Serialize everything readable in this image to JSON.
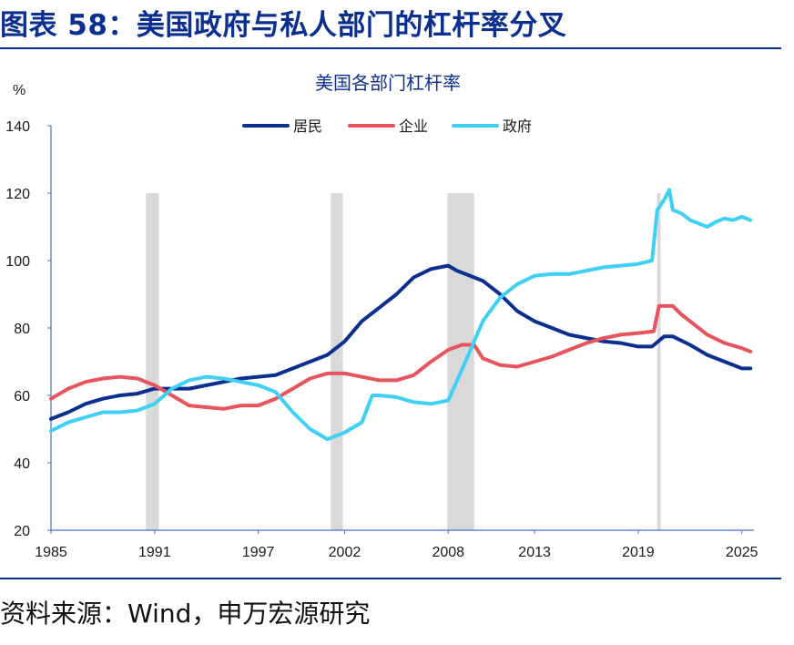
{
  "figure_title": "图表 58：美国政府与私人部门的杠杆率分叉",
  "source_note": "资料来源：Wind，申万宏源研究",
  "colors": {
    "title": "#0b2f8f",
    "recession": "#d9d9d9",
    "axis": "#4472c4"
  },
  "chart_data": {
    "type": "line",
    "title": "美国各部门杠杆率",
    "ylabel": "%",
    "xlabel": "",
    "xlim": [
      1985,
      2025.7
    ],
    "ylim": [
      20,
      140
    ],
    "x_ticks": [
      1985,
      1991,
      1997,
      2002,
      2008,
      2013,
      2019,
      2025
    ],
    "y_ticks": [
      20,
      40,
      60,
      80,
      100,
      120,
      140
    ],
    "grid": false,
    "legend_position": "top-center",
    "recessions": [
      [
        1990.5,
        1991.25
      ],
      [
        2001.2,
        2001.9
      ],
      [
        2007.95,
        2009.5
      ],
      [
        2020.1,
        2020.3
      ]
    ],
    "series": [
      {
        "name": "居民",
        "color": "#0b2f8f",
        "points": [
          [
            1985,
            53
          ],
          [
            1986,
            55
          ],
          [
            1987,
            57.5
          ],
          [
            1988,
            59
          ],
          [
            1989,
            60
          ],
          [
            1990,
            60.5
          ],
          [
            1991,
            62
          ],
          [
            1992,
            62
          ],
          [
            1993,
            62
          ],
          [
            1994,
            63
          ],
          [
            1995,
            64
          ],
          [
            1996,
            65
          ],
          [
            1997,
            65.5
          ],
          [
            1998,
            66
          ],
          [
            1999,
            68
          ],
          [
            2000,
            70
          ],
          [
            2001,
            72
          ],
          [
            2002,
            76
          ],
          [
            2003,
            82
          ],
          [
            2004,
            86
          ],
          [
            2005,
            90
          ],
          [
            2006,
            95
          ],
          [
            2007,
            97.5
          ],
          [
            2008,
            98.5
          ],
          [
            2008.5,
            97
          ],
          [
            2009,
            96
          ],
          [
            2010,
            94
          ],
          [
            2011,
            90
          ],
          [
            2012,
            85
          ],
          [
            2013,
            82
          ],
          [
            2014,
            80
          ],
          [
            2015,
            78
          ],
          [
            2016,
            77
          ],
          [
            2017,
            76
          ],
          [
            2018,
            75.5
          ],
          [
            2019,
            74.5
          ],
          [
            2019.8,
            74.5
          ],
          [
            2020.5,
            77.5
          ],
          [
            2021,
            77.5
          ],
          [
            2022,
            75
          ],
          [
            2023,
            72
          ],
          [
            2024,
            70
          ],
          [
            2025,
            68
          ],
          [
            2025.5,
            68
          ]
        ]
      },
      {
        "name": "企业",
        "color": "#e8545c",
        "points": [
          [
            1985,
            59
          ],
          [
            1986,
            62
          ],
          [
            1987,
            64
          ],
          [
            1988,
            65
          ],
          [
            1989,
            65.5
          ],
          [
            1990,
            65
          ],
          [
            1991,
            63
          ],
          [
            1992,
            60
          ],
          [
            1993,
            57
          ],
          [
            1994,
            56.5
          ],
          [
            1995,
            56
          ],
          [
            1996,
            57
          ],
          [
            1997,
            57
          ],
          [
            1998,
            59
          ],
          [
            1999,
            62
          ],
          [
            2000,
            65
          ],
          [
            2001,
            66.5
          ],
          [
            2002,
            66.5
          ],
          [
            2003,
            65.5
          ],
          [
            2004,
            64.5
          ],
          [
            2005,
            64.5
          ],
          [
            2006,
            66
          ],
          [
            2007,
            70
          ],
          [
            2008,
            73.5
          ],
          [
            2008.8,
            75
          ],
          [
            2009.5,
            75
          ],
          [
            2010,
            71
          ],
          [
            2011,
            69
          ],
          [
            2012,
            68.5
          ],
          [
            2013,
            70
          ],
          [
            2014,
            71.5
          ],
          [
            2015,
            73.5
          ],
          [
            2016,
            75.5
          ],
          [
            2017,
            77
          ],
          [
            2018,
            78
          ],
          [
            2019,
            78.5
          ],
          [
            2019.9,
            79
          ],
          [
            2020.2,
            86.5
          ],
          [
            2021,
            86.5
          ],
          [
            2021.5,
            84
          ],
          [
            2022,
            82
          ],
          [
            2023,
            78
          ],
          [
            2024,
            75.5
          ],
          [
            2025,
            74
          ],
          [
            2025.5,
            73
          ]
        ]
      },
      {
        "name": "政府",
        "color": "#3fd0f5",
        "points": [
          [
            1985,
            49.5
          ],
          [
            1986,
            52
          ],
          [
            1987,
            53.5
          ],
          [
            1988,
            55
          ],
          [
            1989,
            55
          ],
          [
            1990,
            55.5
          ],
          [
            1991,
            57.5
          ],
          [
            1992,
            62
          ],
          [
            1993,
            64.5
          ],
          [
            1994,
            65.5
          ],
          [
            1995,
            65
          ],
          [
            1996,
            64
          ],
          [
            1997,
            63
          ],
          [
            1998,
            61
          ],
          [
            1999,
            55
          ],
          [
            2000,
            50
          ],
          [
            2001,
            47
          ],
          [
            2002,
            49
          ],
          [
            2003,
            52
          ],
          [
            2003.6,
            60
          ],
          [
            2004,
            60
          ],
          [
            2005,
            59.5
          ],
          [
            2006,
            58
          ],
          [
            2007,
            57.5
          ],
          [
            2008,
            58.5
          ],
          [
            2009,
            70
          ],
          [
            2010,
            82
          ],
          [
            2011,
            89
          ],
          [
            2012,
            93
          ],
          [
            2013,
            95.5
          ],
          [
            2014,
            96
          ],
          [
            2015,
            96
          ],
          [
            2016,
            97
          ],
          [
            2017,
            98
          ],
          [
            2018,
            98.5
          ],
          [
            2019,
            99
          ],
          [
            2019.8,
            100
          ],
          [
            2020.1,
            115
          ],
          [
            2020.5,
            118
          ],
          [
            2020.8,
            121
          ],
          [
            2021,
            115
          ],
          [
            2021.5,
            114
          ],
          [
            2022,
            112
          ],
          [
            2023,
            110
          ],
          [
            2023.5,
            111.5
          ],
          [
            2024,
            112.5
          ],
          [
            2024.5,
            112
          ],
          [
            2025,
            113
          ],
          [
            2025.5,
            112
          ]
        ]
      }
    ]
  }
}
